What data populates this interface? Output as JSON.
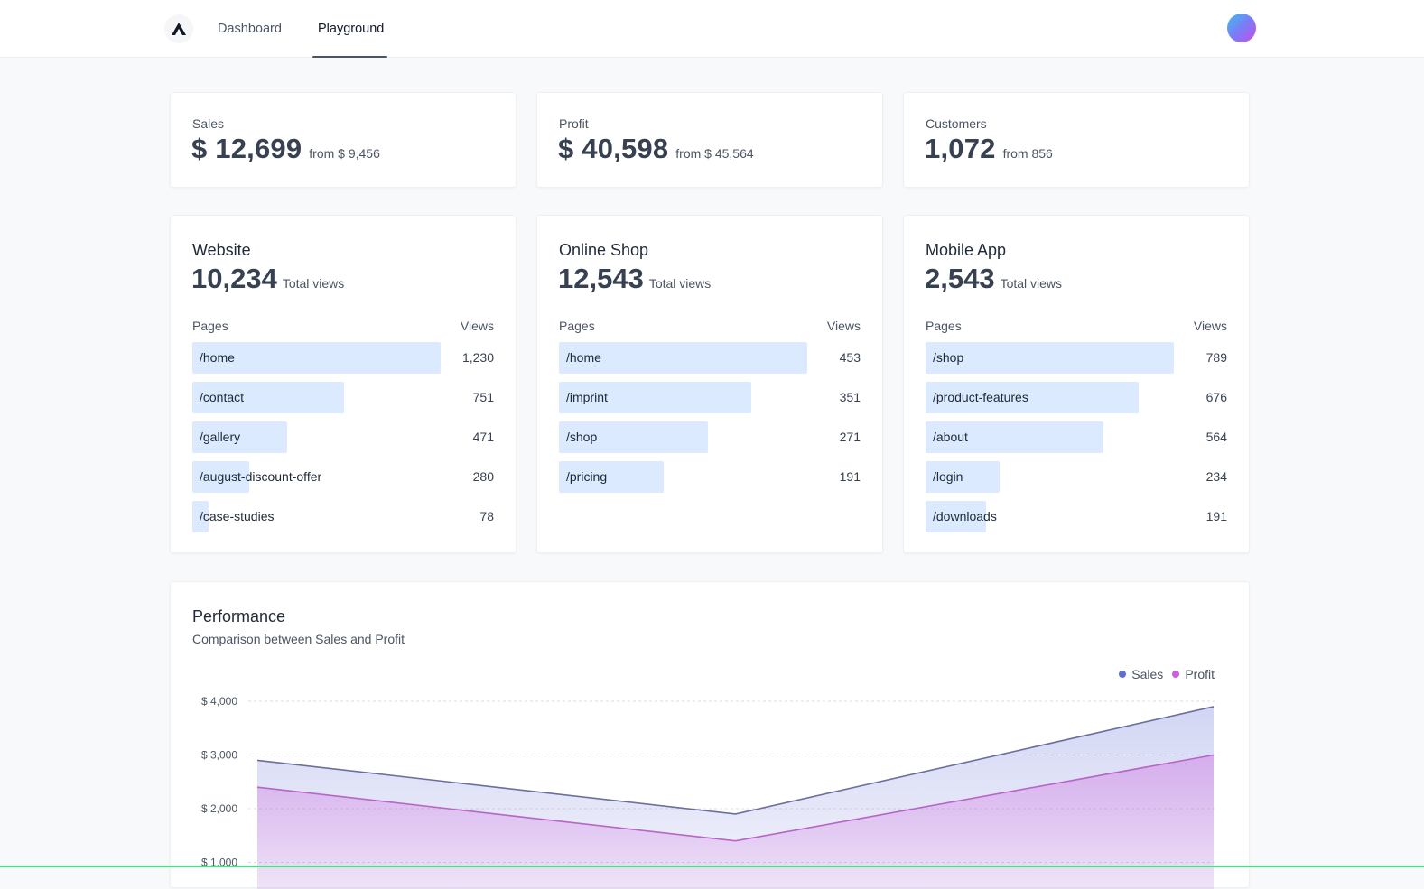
{
  "nav": {
    "tabs": [
      {
        "label": "Dashboard",
        "active": false
      },
      {
        "label": "Playground",
        "active": true
      }
    ]
  },
  "kpis": [
    {
      "label": "Sales",
      "value": "$ 12,699",
      "from": "from $ 9,456"
    },
    {
      "label": "Profit",
      "value": "$ 40,598",
      "from": "from $ 45,564"
    },
    {
      "label": "Customers",
      "value": "1,072",
      "from": "from 856"
    }
  ],
  "sources": [
    {
      "title": "Website",
      "total": "10,234",
      "total_label": "Total views",
      "col_pages": "Pages",
      "col_views": "Views",
      "rows": [
        {
          "page": "/home",
          "views": "1,230",
          "value": 1230
        },
        {
          "page": "/contact",
          "views": "751",
          "value": 751
        },
        {
          "page": "/gallery",
          "views": "471",
          "value": 471
        },
        {
          "page": "/august-discount-offer",
          "views": "280",
          "value": 280
        },
        {
          "page": "/case-studies",
          "views": "78",
          "value": 78
        }
      ]
    },
    {
      "title": "Online Shop",
      "total": "12,543",
      "total_label": "Total views",
      "col_pages": "Pages",
      "col_views": "Views",
      "rows": [
        {
          "page": "/home",
          "views": "453",
          "value": 453
        },
        {
          "page": "/imprint",
          "views": "351",
          "value": 351
        },
        {
          "page": "/shop",
          "views": "271",
          "value": 271
        },
        {
          "page": "/pricing",
          "views": "191",
          "value": 191
        }
      ]
    },
    {
      "title": "Mobile App",
      "total": "2,543",
      "total_label": "Total views",
      "col_pages": "Pages",
      "col_views": "Views",
      "rows": [
        {
          "page": "/shop",
          "views": "789",
          "value": 789
        },
        {
          "page": "/product-features",
          "views": "676",
          "value": 676
        },
        {
          "page": "/about",
          "views": "564",
          "value": 564
        },
        {
          "page": "/login",
          "views": "234",
          "value": 234
        },
        {
          "page": "/downloads",
          "views": "191",
          "value": 191
        }
      ]
    }
  ],
  "performance": {
    "title": "Performance",
    "subtitle": "Comparison between Sales and Profit"
  },
  "colors": {
    "bar_fill": "#dbeafe",
    "sales": "#5f6bd6",
    "sales_line": "#6a6f9e",
    "profit": "#cc5fdc",
    "profit_line": "#b864c8",
    "accent_bottom": "#4ade80"
  },
  "chart_data": {
    "type": "area",
    "x_points": 3,
    "series": [
      {
        "name": "Sales",
        "values": [
          2900,
          1900,
          3900
        ]
      },
      {
        "name": "Profit",
        "values": [
          2400,
          1400,
          3000
        ]
      }
    ],
    "ylim": [
      0,
      4000
    ],
    "yticks": [
      "$ 1,000",
      "$ 2,000",
      "$ 3,000",
      "$ 4,000"
    ],
    "ytick_values": [
      1000,
      2000,
      3000,
      4000
    ],
    "grid": true,
    "legend_position": "top-right"
  }
}
